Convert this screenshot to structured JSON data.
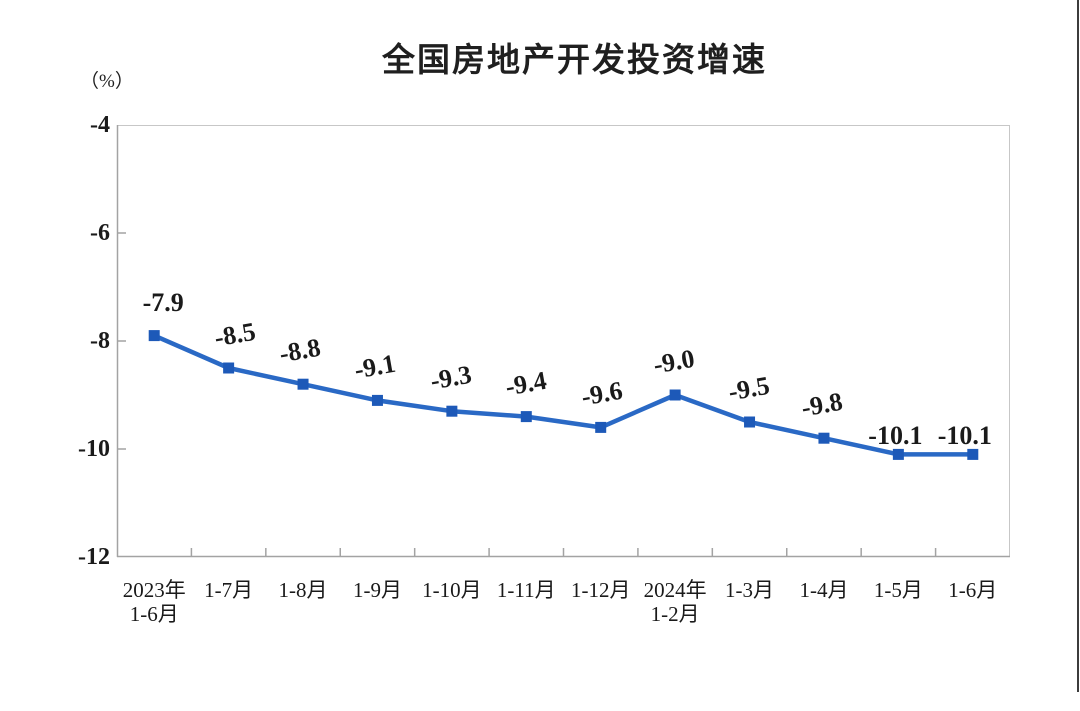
{
  "chart_data": {
    "type": "line",
    "title": "全国房地产开发投资增速",
    "unit_label": "（%）",
    "categories": [
      "2023年\n1-6月",
      "1-7月",
      "1-8月",
      "1-9月",
      "1-10月",
      "1-11月",
      "1-12月",
      "2024年\n1-2月",
      "1-3月",
      "1-4月",
      "1-5月",
      "1-6月"
    ],
    "values": [
      -7.9,
      -8.5,
      -8.8,
      -9.1,
      -9.3,
      -9.4,
      -9.6,
      -9.0,
      -9.5,
      -9.8,
      -10.1,
      -10.1
    ],
    "data_labels": [
      "-7.9",
      "-8.5",
      "-8.8",
      "-9.1",
      "-9.3",
      "-9.4",
      "-9.6",
      "-9.0",
      "-9.5",
      "-9.8",
      "-10.1",
      "-10.1"
    ],
    "series_name": "全国房地产开发投资增速",
    "xlabel": "",
    "ylabel": "（%）",
    "y_ticks": [
      "-4",
      "-6",
      "-8",
      "-10",
      "-12"
    ],
    "y_tick_values": [
      -4,
      -6,
      -8,
      -10,
      -12
    ],
    "ylim": [
      -12,
      -4
    ],
    "grid": false,
    "legend_position": "none",
    "marker": "square",
    "colors": {
      "line": "#2a69c5",
      "marker": "#1d59b8",
      "text": "#1a1a1a",
      "axis": "#a3a3a3",
      "plot_border": "#c7c7c7"
    }
  }
}
